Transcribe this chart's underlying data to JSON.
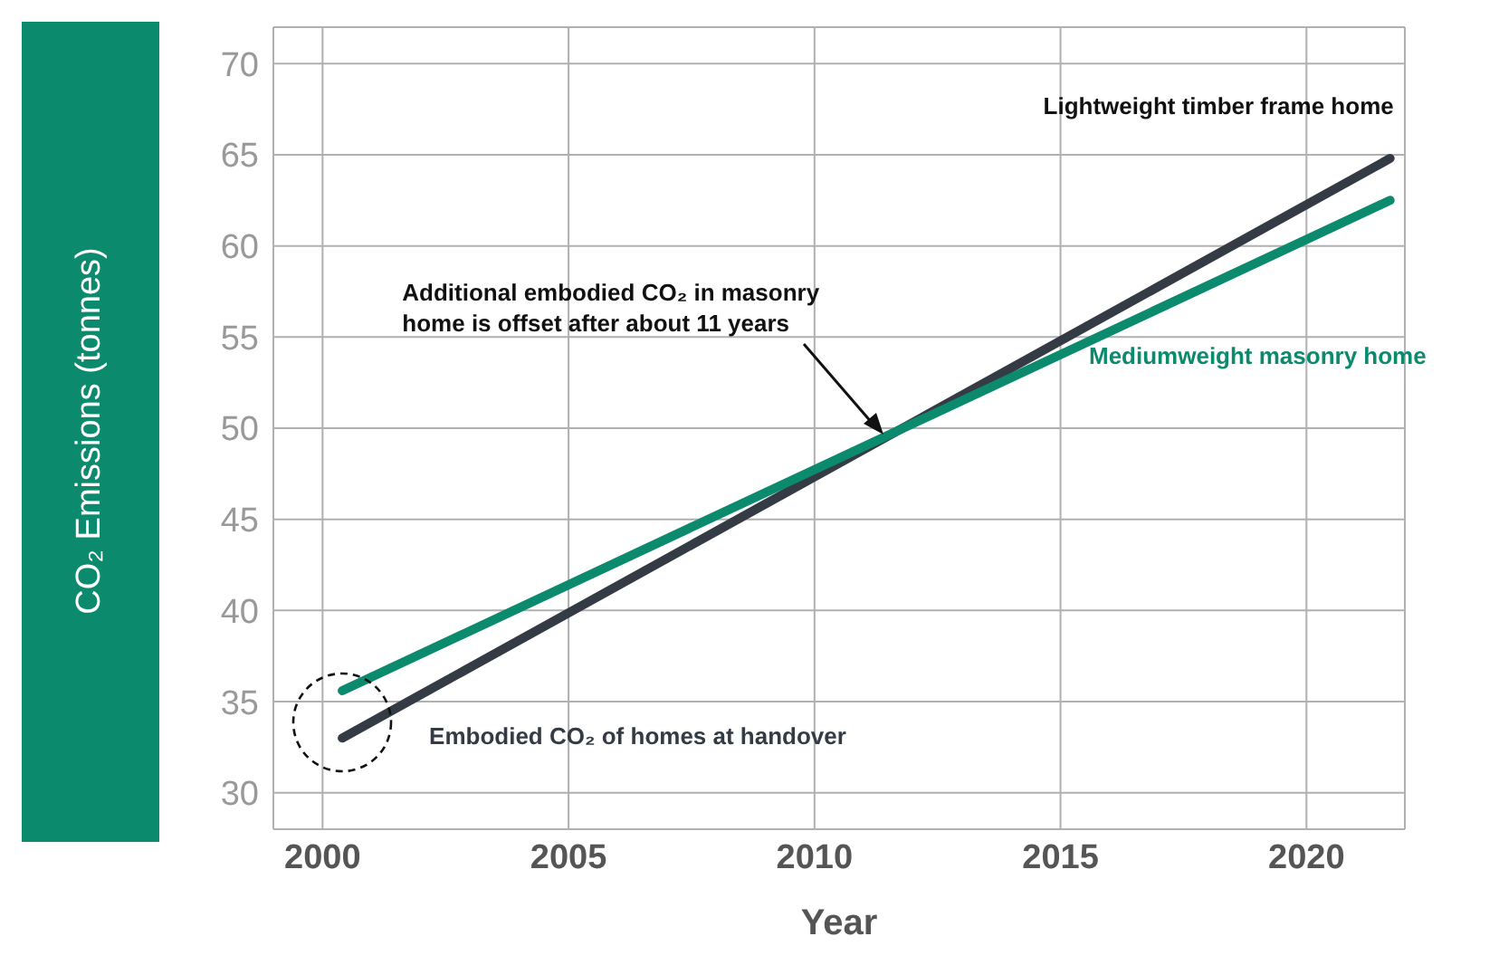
{
  "chart_data": {
    "type": "line",
    "xlabel": "Year",
    "ylabel": "CO₂ Emissions (tonnes)",
    "xlim": [
      1999,
      2022
    ],
    "xticks": [
      2000,
      2005,
      2010,
      2015,
      2020
    ],
    "ylim": [
      28,
      72
    ],
    "yticks": [
      30,
      35,
      40,
      45,
      50,
      55,
      60,
      65,
      70
    ],
    "grid": true,
    "line_style": "solid",
    "marker": "none",
    "x": [
      2000.4,
      2021.7
    ],
    "series": [
      {
        "name": "Lightweight timber frame home",
        "color": "#343b44",
        "values": [
          33,
          64.8
        ]
      },
      {
        "name": "Mediumweight masonry home",
        "color": "#0b8a6d",
        "values": [
          35.6,
          62.5
        ]
      }
    ],
    "annotations": [
      "Additional embodied CO₂ in masonry home is offset after about 11 years",
      "Embodied CO₂ of homes at handover"
    ]
  }
}
